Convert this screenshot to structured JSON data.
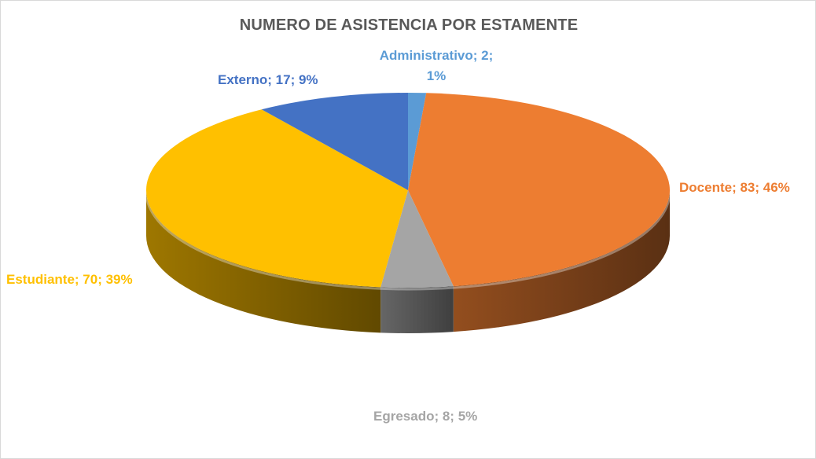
{
  "chart_data": {
    "type": "pie",
    "title": "NUMERO DE ASISTENCIA POR ESTAMENTE",
    "three_d": true,
    "start_angle_deg": 0,
    "direction": "clockwise",
    "legend": "none",
    "slices": [
      {
        "name": "Administrativo",
        "value": 2,
        "percent": "1%",
        "label": "Administrativo; 2; 1%",
        "color": "#5B9BD5"
      },
      {
        "name": "Docente",
        "value": 83,
        "percent": "46%",
        "label": "Docente; 83; 46%",
        "color": "#ED7D31"
      },
      {
        "name": "Egresado",
        "value": 8,
        "percent": "5%",
        "label": "Egresado; 8; 5%",
        "color": "#A5A5A5"
      },
      {
        "name": "Estudiante",
        "value": 70,
        "percent": "39%",
        "label": "Estudiante; 70; 39%",
        "color": "#FFC000"
      },
      {
        "name": "Externo",
        "value": 17,
        "percent": "9%",
        "label": "Externo; 17; 9%",
        "color": "#4472C4"
      }
    ]
  }
}
